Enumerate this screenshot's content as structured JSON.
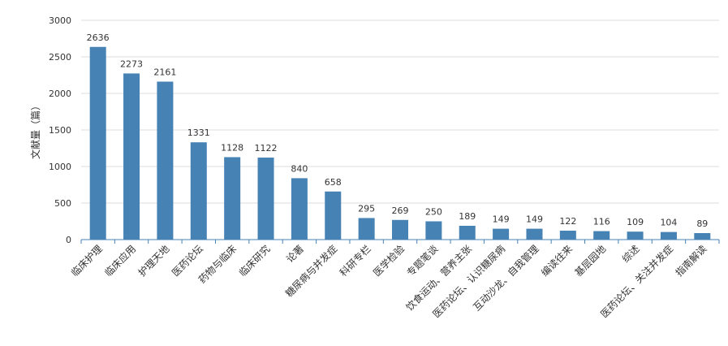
{
  "chart_data": {
    "type": "bar",
    "ylabel": "文献量（篇）",
    "ylim": [
      0,
      3000
    ],
    "yticks": [
      0,
      500,
      1000,
      1500,
      2000,
      2500,
      3000
    ],
    "grid": true,
    "bar_color": "#4682b4",
    "categories": [
      "临床护理",
      "临床应用",
      "护理天地",
      "医药论坛",
      "药物与临床",
      "临床研究",
      "论著",
      "糖尿病与并发症",
      "科研专栏",
      "医学检验",
      "专题笔谈",
      "饮食运动、营养主张",
      "医药论坛、认识糖尿病",
      "互动沙龙、自我管理",
      "编读往来",
      "基层园地",
      "综述",
      "医药论坛、关注并发症",
      "指南解读"
    ],
    "values": [
      2636,
      2273,
      2161,
      1331,
      1128,
      1122,
      840,
      658,
      295,
      269,
      250,
      189,
      149,
      149,
      122,
      116,
      109,
      104,
      89
    ]
  }
}
